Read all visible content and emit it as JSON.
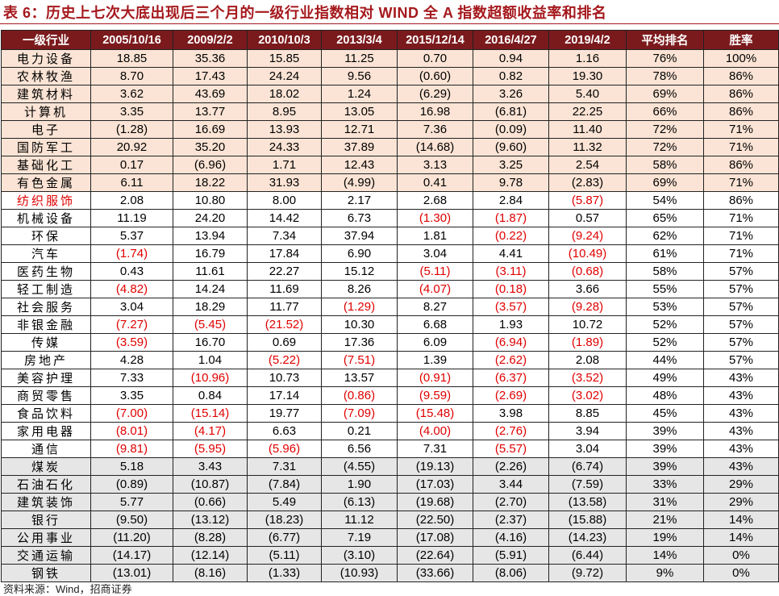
{
  "title": "表 6：历史上七次大底出现后三个月的一级行业指数相对 WIND 全 A 指数超额收益率和排名",
  "table": {
    "header": [
      "一级行业",
      "2005/10/16",
      "2009/2/2",
      "2010/10/3",
      "2013/3/4",
      "2015/12/14",
      "2016/4/27",
      "2019/4/2",
      "平均排名",
      "胜率"
    ],
    "rows": [
      {
        "tone": "peach",
        "cells": [
          "电力设备",
          "18.85",
          "35.36",
          "15.85",
          "11.25",
          "0.70",
          "0.94",
          "1.16",
          "76%",
          "100%"
        ]
      },
      {
        "tone": "peach",
        "cells": [
          "农林牧渔",
          "8.70",
          "17.43",
          "24.24",
          "9.56",
          "(0.60)",
          "0.82",
          "19.30",
          "78%",
          "86%"
        ]
      },
      {
        "tone": "peach",
        "cells": [
          "建筑材料",
          "3.62",
          "43.69",
          "18.02",
          "1.24",
          "(6.29)",
          "3.26",
          "5.40",
          "69%",
          "86%"
        ]
      },
      {
        "tone": "peach",
        "cells": [
          "计算机",
          "3.35",
          "13.77",
          "8.95",
          "13.05",
          "16.98",
          "(6.81)",
          "22.25",
          "66%",
          "86%"
        ]
      },
      {
        "tone": "peach",
        "cells": [
          "电子",
          "(1.28)",
          "16.69",
          "13.93",
          "12.71",
          "7.36",
          "(0.09)",
          "11.40",
          "72%",
          "71%"
        ]
      },
      {
        "tone": "peach",
        "cells": [
          "国防军工",
          "20.92",
          "35.20",
          "24.33",
          "37.89",
          "(14.68)",
          "(9.60)",
          "11.32",
          "72%",
          "71%"
        ]
      },
      {
        "tone": "peach",
        "cells": [
          "基础化工",
          "0.17",
          "(6.96)",
          "1.71",
          "12.43",
          "3.13",
          "3.25",
          "2.54",
          "58%",
          "86%"
        ]
      },
      {
        "tone": "peach",
        "cells": [
          "有色金属",
          "6.11",
          "18.22",
          "31.93",
          "(4.99)",
          "0.41",
          "9.78",
          "(2.83)",
          "69%",
          "71%"
        ]
      },
      {
        "tone": "mid",
        "label_red": true,
        "cells": [
          "纺织服饰",
          "2.08",
          "10.80",
          "8.00",
          "2.17",
          "2.68",
          "2.84",
          "(5.87)",
          "54%",
          "86%"
        ]
      },
      {
        "tone": "mid",
        "cells": [
          "机械设备",
          "11.19",
          "24.20",
          "14.42",
          "6.73",
          "(1.30)",
          "(1.87)",
          "0.57",
          "65%",
          "71%"
        ]
      },
      {
        "tone": "mid",
        "cells": [
          "环保",
          "5.37",
          "13.94",
          "7.34",
          "37.94",
          "1.81",
          "(0.22)",
          "(9.24)",
          "62%",
          "71%"
        ]
      },
      {
        "tone": "mid",
        "cells": [
          "汽车",
          "(1.74)",
          "16.79",
          "17.84",
          "6.90",
          "3.04",
          "4.41",
          "(10.49)",
          "61%",
          "71%"
        ]
      },
      {
        "tone": "mid",
        "cells": [
          "医药生物",
          "0.43",
          "11.61",
          "22.27",
          "15.12",
          "(5.11)",
          "(3.11)",
          "(0.68)",
          "58%",
          "57%"
        ]
      },
      {
        "tone": "mid",
        "cells": [
          "轻工制造",
          "(4.82)",
          "14.24",
          "11.69",
          "8.26",
          "(4.07)",
          "(0.18)",
          "3.66",
          "55%",
          "57%"
        ]
      },
      {
        "tone": "mid",
        "cells": [
          "社会服务",
          "3.04",
          "18.29",
          "11.77",
          "(1.29)",
          "8.27",
          "(3.57)",
          "(9.28)",
          "53%",
          "57%"
        ]
      },
      {
        "tone": "mid",
        "cells": [
          "非银金融",
          "(7.27)",
          "(5.45)",
          "(21.52)",
          "10.30",
          "6.68",
          "1.93",
          "10.72",
          "52%",
          "57%"
        ]
      },
      {
        "tone": "mid",
        "cells": [
          "传媒",
          "(3.59)",
          "16.70",
          "0.69",
          "17.36",
          "6.09",
          "(6.94)",
          "(1.89)",
          "52%",
          "57%"
        ]
      },
      {
        "tone": "mid",
        "cells": [
          "房地产",
          "4.28",
          "1.04",
          "(5.22)",
          "(7.51)",
          "1.39",
          "(2.62)",
          "2.08",
          "44%",
          "57%"
        ]
      },
      {
        "tone": "mid",
        "cells": [
          "美容护理",
          "7.33",
          "(10.96)",
          "10.73",
          "13.57",
          "(0.91)",
          "(6.37)",
          "(3.52)",
          "49%",
          "43%"
        ]
      },
      {
        "tone": "mid",
        "cells": [
          "商贸零售",
          "3.35",
          "0.84",
          "17.14",
          "(0.86)",
          "(9.59)",
          "(2.69)",
          "(3.02)",
          "48%",
          "43%"
        ]
      },
      {
        "tone": "mid",
        "cells": [
          "食品饮料",
          "(7.00)",
          "(15.14)",
          "19.77",
          "(7.09)",
          "(15.48)",
          "3.98",
          "8.85",
          "45%",
          "43%"
        ]
      },
      {
        "tone": "mid",
        "cells": [
          "家用电器",
          "(8.01)",
          "(4.17)",
          "6.63",
          "0.21",
          "(4.00)",
          "(2.76)",
          "3.94",
          "39%",
          "43%"
        ]
      },
      {
        "tone": "mid",
        "cells": [
          "通信",
          "(9.81)",
          "(5.95)",
          "(5.96)",
          "6.56",
          "7.31",
          "(5.57)",
          "3.04",
          "39%",
          "43%"
        ]
      },
      {
        "tone": "gray",
        "cells": [
          "煤炭",
          "5.18",
          "3.43",
          "7.31",
          "(4.55)",
          "(19.13)",
          "(2.26)",
          "(6.74)",
          "39%",
          "43%"
        ]
      },
      {
        "tone": "gray",
        "cells": [
          "石油石化",
          "(0.89)",
          "(10.87)",
          "(7.84)",
          "1.90",
          "(17.03)",
          "3.44",
          "(7.59)",
          "33%",
          "29%"
        ]
      },
      {
        "tone": "gray",
        "cells": [
          "建筑装饰",
          "5.77",
          "(0.66)",
          "5.49",
          "(6.13)",
          "(19.68)",
          "(2.70)",
          "(13.58)",
          "31%",
          "29%"
        ]
      },
      {
        "tone": "gray",
        "cells": [
          "银行",
          "(9.50)",
          "(13.12)",
          "(18.23)",
          "11.12",
          "(22.50)",
          "(2.37)",
          "(15.88)",
          "21%",
          "14%"
        ]
      },
      {
        "tone": "gray",
        "cells": [
          "公用事业",
          "(11.20)",
          "(8.28)",
          "(6.77)",
          "7.19",
          "(17.08)",
          "(4.16)",
          "(14.23)",
          "19%",
          "14%"
        ]
      },
      {
        "tone": "gray",
        "cells": [
          "交通运输",
          "(14.17)",
          "(12.14)",
          "(5.11)",
          "(3.10)",
          "(22.64)",
          "(5.91)",
          "(6.44)",
          "14%",
          "0%"
        ]
      },
      {
        "tone": "gray",
        "cells": [
          "钢铁",
          "(13.01)",
          "(8.16)",
          "(1.33)",
          "(10.93)",
          "(33.66)",
          "(8.06)",
          "(9.72)",
          "9%",
          "0%"
        ]
      }
    ]
  },
  "source": "资料来源：Wind，招商证券"
}
